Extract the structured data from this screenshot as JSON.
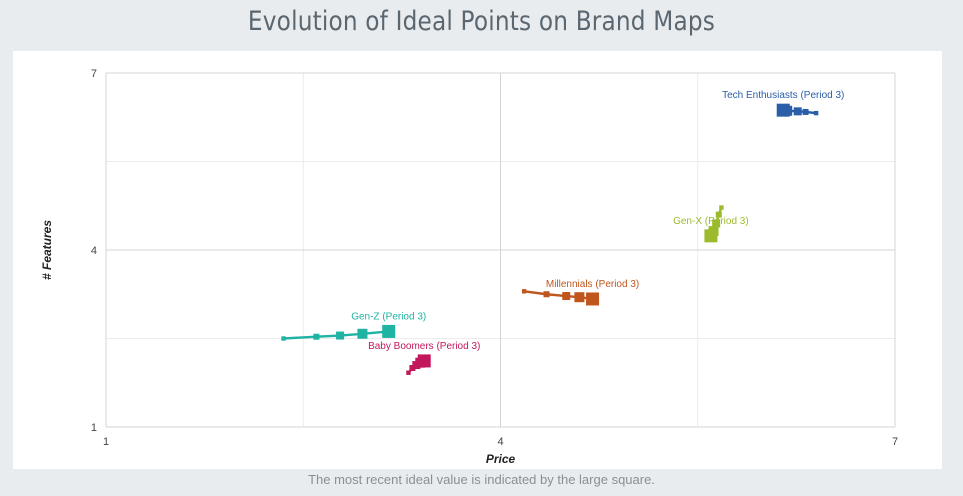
{
  "title": "Evolution of Ideal Points on Brand Maps",
  "footnote": "The most recent ideal value is indicated by the large square.",
  "chart_data": {
    "type": "line",
    "title": "Evolution of Ideal Points on Brand Maps",
    "xlabel": "Price",
    "ylabel": "# Features",
    "xlim": [
      1,
      7
    ],
    "ylim": [
      1,
      7
    ],
    "xticks": [
      "1",
      "4",
      "7"
    ],
    "yticks": [
      "1",
      "4",
      "7"
    ],
    "grid": true,
    "series": [
      {
        "label": "Gen-Z (Period 3)",
        "color": "#1fb3a3",
        "points": [
          [
            2.35,
            2.5
          ],
          [
            2.6,
            2.53
          ],
          [
            2.78,
            2.55
          ],
          [
            2.95,
            2.58
          ],
          [
            3.15,
            2.62
          ]
        ]
      },
      {
        "label": "Baby Boomers (Period 3)",
        "color": "#c2185b",
        "points": [
          [
            3.3,
            1.92
          ],
          [
            3.33,
            2.0
          ],
          [
            3.36,
            2.05
          ],
          [
            3.39,
            2.09
          ],
          [
            3.42,
            2.12
          ]
        ]
      },
      {
        "label": "Millennials (Period 3)",
        "color": "#c0561e",
        "points": [
          [
            4.18,
            3.3
          ],
          [
            4.35,
            3.25
          ],
          [
            4.5,
            3.22
          ],
          [
            4.6,
            3.2
          ],
          [
            4.7,
            3.17
          ]
        ]
      },
      {
        "label": "Gen-X (Period 3)",
        "color": "#9bbb2c",
        "points": [
          [
            5.68,
            4.72
          ],
          [
            5.66,
            4.6
          ],
          [
            5.64,
            4.45
          ],
          [
            5.62,
            4.32
          ],
          [
            5.6,
            4.24
          ]
        ]
      },
      {
        "label": "Tech Enthusiasts (Period 3)",
        "color": "#2a5ea8",
        "points": [
          [
            6.4,
            6.32
          ],
          [
            6.32,
            6.34
          ],
          [
            6.26,
            6.35
          ],
          [
            6.18,
            6.36
          ],
          [
            6.15,
            6.37
          ]
        ]
      }
    ]
  }
}
